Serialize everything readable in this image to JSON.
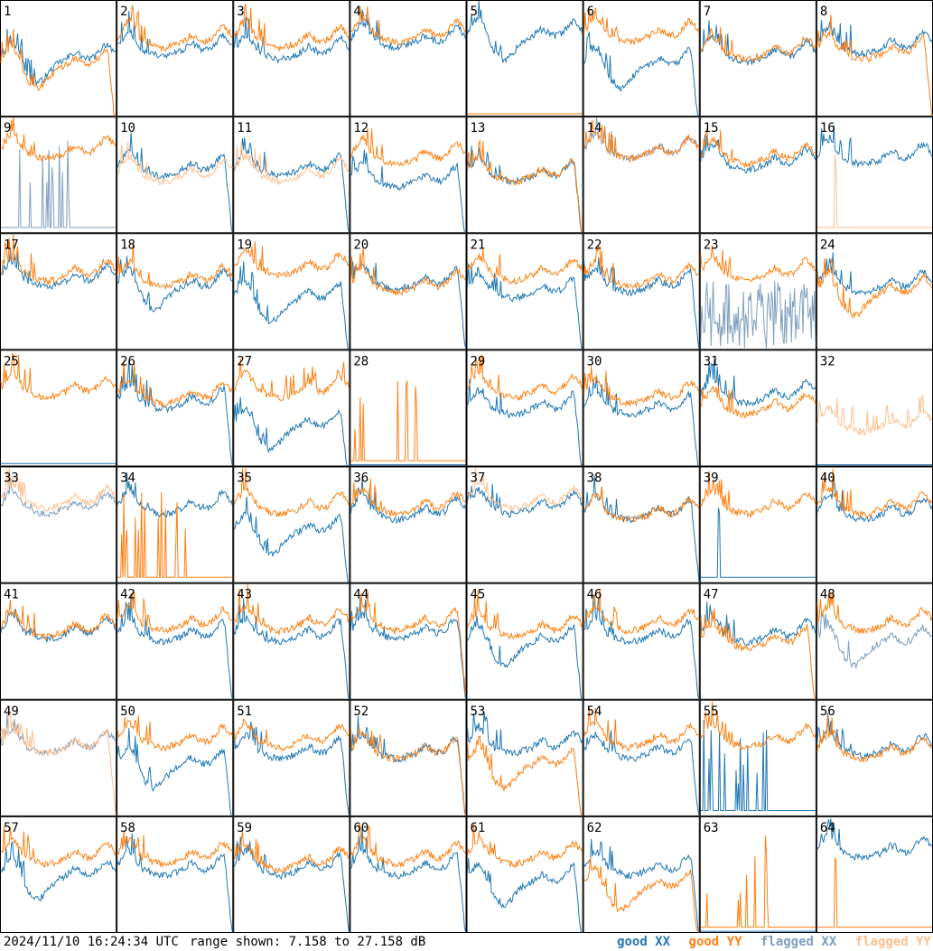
{
  "footer": {
    "timestamp": "2024/11/10 16:24:34 UTC",
    "range_text": "range shown: 7.158 to 27.158 dB",
    "legend": {
      "good_xx": "good XX",
      "good_yy": "good YY",
      "flagged_xx": "flagged XX",
      "flagged_yy": "flagged YY"
    }
  },
  "colors": {
    "good_xx": "#1f77b4",
    "good_yy": "#ff7f0e",
    "flagged_xx": "#7f9fbf",
    "flagged_yy": "#ffbf8f",
    "grid": "#000000"
  },
  "chart_data": {
    "type": "line",
    "layout": "8x8 small multiples",
    "x_range": [
      0,
      100
    ],
    "ylim": [
      7.158,
      27.158
    ],
    "unit": "dB",
    "panels": [
      {
        "label": "1",
        "xx": {
          "status": "good",
          "pattern": "dip",
          "level": 17
        },
        "yy": {
          "status": "good",
          "pattern": "dip_rolloff",
          "level": 16
        }
      },
      {
        "label": "2",
        "xx": {
          "status": "good",
          "pattern": "normal",
          "level": 18.5
        },
        "yy": {
          "status": "good",
          "pattern": "normal",
          "level": 20
        }
      },
      {
        "label": "3",
        "xx": {
          "status": "good",
          "pattern": "normal",
          "level": 18
        },
        "yy": {
          "status": "good",
          "pattern": "normal",
          "level": 20
        }
      },
      {
        "label": "4",
        "xx": {
          "status": "good",
          "pattern": "normal",
          "level": 20
        },
        "yy": {
          "status": "good",
          "pattern": "normal",
          "level": 21
        }
      },
      {
        "label": "5",
        "xx": {
          "status": "good",
          "pattern": "dip",
          "level": 21
        },
        "yy": {
          "status": "good",
          "pattern": "flat_low",
          "level": 7.5
        }
      },
      {
        "label": "6",
        "xx": {
          "status": "good",
          "pattern": "dip_rolloff",
          "level": 16
        },
        "yy": {
          "status": "good",
          "pattern": "normal",
          "level": 21
        }
      },
      {
        "label": "7",
        "xx": {
          "status": "good",
          "pattern": "normal",
          "level": 17.5
        },
        "yy": {
          "status": "good",
          "pattern": "normal",
          "level": 18
        }
      },
      {
        "label": "8",
        "xx": {
          "status": "good",
          "pattern": "normal",
          "level": 19
        },
        "yy": {
          "status": "good",
          "pattern": "spiky_rolloff",
          "level": 18
        }
      },
      {
        "label": "9",
        "xx": {
          "status": "flagged",
          "pattern": "spikes_low",
          "level": 8
        },
        "yy": {
          "status": "good",
          "pattern": "normal",
          "level": 21
        }
      },
      {
        "label": "10",
        "xx": {
          "status": "good",
          "pattern": "rolloff",
          "level": 18
        },
        "yy": {
          "status": "flagged",
          "pattern": "normal",
          "level": 17
        }
      },
      {
        "label": "11",
        "xx": {
          "status": "good",
          "pattern": "rolloff",
          "level": 18
        },
        "yy": {
          "status": "flagged",
          "pattern": "normal",
          "level": 17
        }
      },
      {
        "label": "12",
        "xx": {
          "status": "good",
          "pattern": "rolloff",
          "level": 16
        },
        "yy": {
          "status": "good",
          "pattern": "normal",
          "level": 20
        }
      },
      {
        "label": "13",
        "xx": {
          "status": "good",
          "pattern": "rolloff",
          "level": 17
        },
        "yy": {
          "status": "good",
          "pattern": "rolloff",
          "level": 17
        }
      },
      {
        "label": "14",
        "xx": {
          "status": "flagged",
          "pattern": "normal",
          "level": 21
        },
        "yy": {
          "status": "good",
          "pattern": "normal",
          "level": 21
        }
      },
      {
        "label": "15",
        "xx": {
          "status": "good",
          "pattern": "normal",
          "level": 19
        },
        "yy": {
          "status": "good",
          "pattern": "normal",
          "level": 20
        }
      },
      {
        "label": "16",
        "xx": {
          "status": "good",
          "pattern": "normal",
          "level": 20
        },
        "yy": {
          "status": "flagged",
          "pattern": "spike_once",
          "level": 8
        }
      },
      {
        "label": "17",
        "xx": {
          "status": "good",
          "pattern": "normal",
          "level": 19
        },
        "yy": {
          "status": "good",
          "pattern": "normal",
          "level": 20
        }
      },
      {
        "label": "18",
        "xx": {
          "status": "good",
          "pattern": "dip",
          "level": 18
        },
        "yy": {
          "status": "good",
          "pattern": "normal",
          "level": 19
        }
      },
      {
        "label": "19",
        "xx": {
          "status": "good",
          "pattern": "dip_rolloff",
          "level": 16
        },
        "yy": {
          "status": "good",
          "pattern": "normal",
          "level": 21
        }
      },
      {
        "label": "20",
        "xx": {
          "status": "good",
          "pattern": "rolloff",
          "level": 18.5
        },
        "yy": {
          "status": "good",
          "pattern": "normal",
          "level": 18
        }
      },
      {
        "label": "21",
        "xx": {
          "status": "good",
          "pattern": "rolloff",
          "level": 17
        },
        "yy": {
          "status": "good",
          "pattern": "normal",
          "level": 20
        }
      },
      {
        "label": "22",
        "xx": {
          "status": "good",
          "pattern": "rolloff",
          "level": 18
        },
        "yy": {
          "status": "good",
          "pattern": "normal",
          "level": 19
        }
      },
      {
        "label": "23",
        "xx": {
          "status": "flagged",
          "pattern": "chaotic",
          "level": 13
        },
        "yy": {
          "status": "good",
          "pattern": "normal",
          "level": 20
        }
      },
      {
        "label": "24",
        "xx": {
          "status": "good",
          "pattern": "normal",
          "level": 18
        },
        "yy": {
          "status": "good",
          "pattern": "dip",
          "level": 17
        }
      },
      {
        "label": "25",
        "xx": {
          "status": "good",
          "pattern": "flat_low",
          "level": 7.5
        },
        "yy": {
          "status": "good",
          "pattern": "normal",
          "level": 20
        }
      },
      {
        "label": "26",
        "xx": {
          "status": "good",
          "pattern": "rolloff",
          "level": 18
        },
        "yy": {
          "status": "good",
          "pattern": "normal",
          "level": 19
        }
      },
      {
        "label": "27",
        "xx": {
          "status": "good",
          "pattern": "dip_rolloff",
          "level": 14
        },
        "yy": {
          "status": "good",
          "pattern": "spiky",
          "level": 20
        }
      },
      {
        "label": "28",
        "xx": {
          "status": "good",
          "pattern": "flat_low",
          "level": 7.3
        },
        "yy": {
          "status": "good",
          "pattern": "spikes_low",
          "level": 8
        }
      },
      {
        "label": "29",
        "xx": {
          "status": "good",
          "pattern": "rolloff",
          "level": 17
        },
        "yy": {
          "status": "good",
          "pattern": "normal",
          "level": 20
        }
      },
      {
        "label": "30",
        "xx": {
          "status": "good",
          "pattern": "rolloff",
          "level": 17
        },
        "yy": {
          "status": "good",
          "pattern": "normal",
          "level": 19
        }
      },
      {
        "label": "31",
        "xx": {
          "status": "good",
          "pattern": "normal",
          "level": 19
        },
        "yy": {
          "status": "good",
          "pattern": "normal",
          "level": 17
        }
      },
      {
        "label": "32",
        "xx": {
          "status": "good",
          "pattern": "flat_low",
          "level": 7.3
        },
        "yy": {
          "status": "flagged",
          "pattern": "spiky",
          "level": 14
        }
      },
      {
        "label": "33",
        "xx": {
          "status": "flagged",
          "pattern": "normal",
          "level": 20
        },
        "yy": {
          "status": "flagged",
          "pattern": "normal",
          "level": 21
        }
      },
      {
        "label": "34",
        "xx": {
          "status": "good",
          "pattern": "normal",
          "level": 20
        },
        "yy": {
          "status": "good",
          "pattern": "spikes_low",
          "level": 8
        }
      },
      {
        "label": "35",
        "xx": {
          "status": "good",
          "pattern": "dip_rolloff",
          "level": 16
        },
        "yy": {
          "status": "good",
          "pattern": "normal",
          "level": 20
        }
      },
      {
        "label": "36",
        "xx": {
          "status": "good",
          "pattern": "normal",
          "level": 19
        },
        "yy": {
          "status": "good",
          "pattern": "normal",
          "level": 20
        }
      },
      {
        "label": "37",
        "xx": {
          "status": "good",
          "pattern": "normal",
          "level": 20
        },
        "yy": {
          "status": "flagged",
          "pattern": "normal",
          "level": 21
        }
      },
      {
        "label": "38",
        "xx": {
          "status": "good",
          "pattern": "rolloff",
          "level": 19
        },
        "yy": {
          "status": "good",
          "pattern": "normal",
          "level": 19
        }
      },
      {
        "label": "39",
        "xx": {
          "status": "good",
          "pattern": "spike_once",
          "level": 8
        },
        "yy": {
          "status": "good",
          "pattern": "normal",
          "level": 20
        }
      },
      {
        "label": "40",
        "xx": {
          "status": "good",
          "pattern": "normal",
          "level": 19
        },
        "yy": {
          "status": "good",
          "pattern": "normal",
          "level": 20
        }
      },
      {
        "label": "41",
        "xx": {
          "status": "good",
          "pattern": "normal",
          "level": 18.5
        },
        "yy": {
          "status": "good",
          "pattern": "normal",
          "level": 19
        }
      },
      {
        "label": "42",
        "xx": {
          "status": "good",
          "pattern": "rolloff",
          "level": 18
        },
        "yy": {
          "status": "good",
          "pattern": "normal",
          "level": 20
        }
      },
      {
        "label": "43",
        "xx": {
          "status": "good",
          "pattern": "rolloff",
          "level": 18
        },
        "yy": {
          "status": "good",
          "pattern": "normal",
          "level": 20
        }
      },
      {
        "label": "44",
        "xx": {
          "status": "good",
          "pattern": "rolloff",
          "level": 18.5
        },
        "yy": {
          "status": "good",
          "pattern": "rolloff",
          "level": 20
        }
      },
      {
        "label": "45",
        "xx": {
          "status": "good",
          "pattern": "dip_rolloff",
          "level": 17
        },
        "yy": {
          "status": "good",
          "pattern": "normal",
          "level": 19
        }
      },
      {
        "label": "46",
        "xx": {
          "status": "good",
          "pattern": "rolloff",
          "level": 18
        },
        "yy": {
          "status": "good",
          "pattern": "normal",
          "level": 20
        }
      },
      {
        "label": "47",
        "xx": {
          "status": "good",
          "pattern": "normal",
          "level": 18
        },
        "yy": {
          "status": "good",
          "pattern": "rolloff",
          "level": 17
        }
      },
      {
        "label": "48",
        "xx": {
          "status": "flagged",
          "pattern": "dip",
          "level": 17
        },
        "yy": {
          "status": "good",
          "pattern": "normal",
          "level": 20
        }
      },
      {
        "label": "49",
        "xx": {
          "status": "flagged",
          "pattern": "normal",
          "level": 19
        },
        "yy": {
          "status": "flagged",
          "pattern": "rolloff",
          "level": 19
        }
      },
      {
        "label": "50",
        "xx": {
          "status": "good",
          "pattern": "dip_rolloff",
          "level": 16
        },
        "yy": {
          "status": "good",
          "pattern": "normal",
          "level": 20
        }
      },
      {
        "label": "51",
        "xx": {
          "status": "good",
          "pattern": "rolloff",
          "level": 18
        },
        "yy": {
          "status": "good",
          "pattern": "normal",
          "level": 20
        }
      },
      {
        "label": "52",
        "xx": {
          "status": "good",
          "pattern": "rolloff",
          "level": 18
        },
        "yy": {
          "status": "good",
          "pattern": "rolloff",
          "level": 18
        }
      },
      {
        "label": "53",
        "xx": {
          "status": "good",
          "pattern": "normal",
          "level": 19
        },
        "yy": {
          "status": "good",
          "pattern": "dip_rolloff",
          "level": 16
        }
      },
      {
        "label": "54",
        "xx": {
          "status": "good",
          "pattern": "rolloff",
          "level": 18
        },
        "yy": {
          "status": "good",
          "pattern": "normal",
          "level": 20
        }
      },
      {
        "label": "55",
        "xx": {
          "status": "good",
          "pattern": "spikes_low",
          "level": 8
        },
        "yy": {
          "status": "good",
          "pattern": "normal",
          "level": 20
        }
      },
      {
        "label": "56",
        "xx": {
          "status": "good",
          "pattern": "normal",
          "level": 18.5
        },
        "yy": {
          "status": "good",
          "pattern": "normal",
          "level": 18
        }
      },
      {
        "label": "57",
        "xx": {
          "status": "good",
          "pattern": "dip",
          "level": 17
        },
        "yy": {
          "status": "good",
          "pattern": "normal",
          "level": 20
        }
      },
      {
        "label": "58",
        "xx": {
          "status": "good",
          "pattern": "rolloff",
          "level": 18
        },
        "yy": {
          "status": "good",
          "pattern": "normal",
          "level": 20
        }
      },
      {
        "label": "59",
        "xx": {
          "status": "good",
          "pattern": "rolloff",
          "level": 18
        },
        "yy": {
          "status": "good",
          "pattern": "normal",
          "level": 19
        }
      },
      {
        "label": "60",
        "xx": {
          "status": "good",
          "pattern": "rolloff",
          "level": 18
        },
        "yy": {
          "status": "good",
          "pattern": "normal",
          "level": 20
        }
      },
      {
        "label": "61",
        "xx": {
          "status": "good",
          "pattern": "dip_rolloff",
          "level": 16
        },
        "yy": {
          "status": "good",
          "pattern": "normal",
          "level": 20
        }
      },
      {
        "label": "62",
        "xx": {
          "status": "good",
          "pattern": "rolloff",
          "level": 18
        },
        "yy": {
          "status": "good",
          "pattern": "dip_rolloff",
          "level": 15
        }
      },
      {
        "label": "63",
        "xx": {
          "status": "good",
          "pattern": "flat_low",
          "level": 7.3
        },
        "yy": {
          "status": "good",
          "pattern": "spikes_low",
          "level": 8
        }
      },
      {
        "label": "64",
        "xx": {
          "status": "good",
          "pattern": "normal",
          "level": 21
        },
        "yy": {
          "status": "good",
          "pattern": "spike_once",
          "level": 8
        }
      }
    ]
  }
}
